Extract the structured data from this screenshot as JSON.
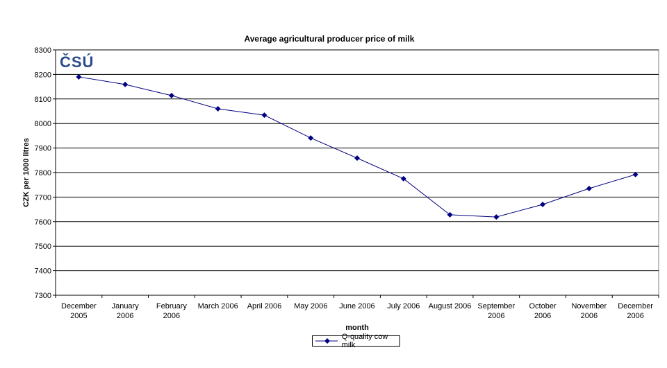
{
  "chart_data": {
    "type": "line",
    "title": "Average agricultural producer price of milk",
    "xlabel": "month",
    "ylabel": "CZK per 1000 litres",
    "categories": [
      [
        "December",
        "2005"
      ],
      [
        "January",
        "2006"
      ],
      [
        "February",
        "2006"
      ],
      [
        "March 2006"
      ],
      [
        "April 2006"
      ],
      [
        "May 2006"
      ],
      [
        "June 2006"
      ],
      [
        "July 2006"
      ],
      [
        "August 2006"
      ],
      [
        "September",
        "2006"
      ],
      [
        "October",
        "2006"
      ],
      [
        "November",
        "2006"
      ],
      [
        "December",
        "2006"
      ]
    ],
    "series": [
      {
        "name": "Q-quality cow milk",
        "values": [
          8190,
          8159,
          8114,
          8060,
          8034,
          7941,
          7859,
          7775,
          7628,
          7619,
          7670,
          7735,
          7792
        ],
        "color": "#000080"
      }
    ],
    "ylim": [
      7300,
      8300
    ],
    "yticks": [
      7300,
      7400,
      7500,
      7600,
      7700,
      7800,
      7900,
      8000,
      8100,
      8200,
      8300
    ],
    "grid": true,
    "legend": "bottom"
  },
  "logo": {
    "text": "ČSÚ",
    "color": "#2b4a8c"
  }
}
